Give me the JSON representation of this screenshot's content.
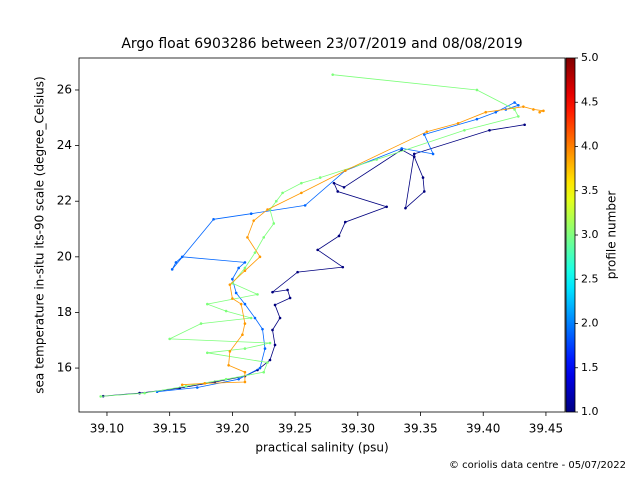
{
  "chart_data": {
    "type": "line",
    "title": "Argo float 6903286 between 23/07/2019 and 08/08/2019",
    "x_label": "practical salinity (psu)",
    "y_label": "sea temperature in-situ its-90 scale (degree_Celsius)",
    "xlim": [
      39.0777,
      39.4652
    ],
    "ylim": [
      14.42,
      27.15
    ],
    "xticks": [
      {
        "value": 39.1,
        "label": "39.10"
      },
      39.15,
      {
        "value": 39.2,
        "label": "39.20"
      },
      39.25,
      {
        "value": 39.3,
        "label": "39.30"
      },
      39.35,
      {
        "value": 39.4,
        "label": "39.40"
      },
      39.45
    ],
    "yticks": [
      16,
      18,
      20,
      22,
      24,
      26
    ],
    "series": [
      {
        "color": "#00007f",
        "x": [
          39.097,
          39.126,
          39.158,
          39.186,
          39.21,
          39.22,
          39.23,
          39.234,
          39.232,
          39.238,
          39.234,
          39.246,
          39.244,
          39.232,
          39.252,
          39.288,
          39.268,
          39.285,
          39.29,
          39.323,
          39.284,
          39.281,
          39.289,
          39.335,
          39.345,
          39.352,
          39.353,
          39.338,
          39.345,
          39.405,
          39.433
        ],
        "values": [
          14.99,
          15.1,
          15.28,
          15.5,
          15.71,
          15.93,
          16.29,
          16.83,
          17.37,
          17.8,
          18.27,
          18.52,
          18.81,
          18.73,
          19.45,
          19.63,
          20.25,
          20.75,
          21.25,
          21.8,
          22.35,
          22.65,
          22.5,
          23.85,
          23.6,
          22.85,
          22.35,
          21.75,
          23.7,
          24.55,
          24.75
        ]
      },
      {
        "color": "#0066ff",
        "x": [
          39.14,
          39.172,
          39.205,
          39.222,
          39.226,
          39.224,
          39.218,
          39.21,
          39.203,
          39.2,
          39.205,
          39.21,
          39.16,
          39.155,
          39.152,
          39.185,
          39.215,
          39.258,
          39.29,
          39.335,
          39.36,
          39.353,
          39.395,
          39.41,
          39.425,
          39.428,
          39.418
        ],
        "values": [
          15.15,
          15.3,
          15.6,
          16.0,
          16.7,
          17.4,
          17.8,
          18.3,
          18.7,
          19.2,
          19.6,
          19.8,
          20.0,
          19.8,
          19.55,
          21.35,
          21.55,
          21.85,
          23.1,
          23.9,
          23.7,
          24.4,
          24.95,
          25.2,
          25.55,
          25.45,
          25.3
        ]
      },
      {
        "color": "#7dff7a",
        "x": [
          39.095,
          39.13,
          39.163,
          39.195,
          39.225,
          39.228,
          39.18,
          39.21,
          39.23,
          39.15,
          39.175,
          39.215,
          39.195,
          39.18,
          39.22,
          39.2,
          39.21,
          39.218,
          39.225,
          39.233,
          39.23,
          39.235,
          39.24,
          39.255,
          39.27,
          39.315,
          39.385,
          39.428,
          39.425,
          39.395,
          39.28
        ],
        "values": [
          14.98,
          15.1,
          15.35,
          15.6,
          15.85,
          16.2,
          16.55,
          16.7,
          16.9,
          17.05,
          17.6,
          17.8,
          18.05,
          18.3,
          18.65,
          19.05,
          19.6,
          20.15,
          20.7,
          21.2,
          21.7,
          22.0,
          22.3,
          22.65,
          22.85,
          23.5,
          24.55,
          25.05,
          25.3,
          26.0,
          26.55
        ]
      },
      {
        "color": "#ff9900",
        "x": [
          39.16,
          39.178,
          39.21,
          39.21,
          39.197,
          39.198,
          39.208,
          39.21,
          39.207,
          39.2,
          39.198,
          39.21,
          39.222,
          39.212,
          39.217,
          39.228,
          39.255,
          39.29,
          39.355,
          39.38,
          39.402,
          39.432,
          39.44,
          39.448,
          39.445
        ],
        "values": [
          15.4,
          15.45,
          15.5,
          15.85,
          16.1,
          16.6,
          17.2,
          17.6,
          18.3,
          18.5,
          19.0,
          19.5,
          20.0,
          20.7,
          21.3,
          21.7,
          22.3,
          23.1,
          24.5,
          24.8,
          25.2,
          25.4,
          25.3,
          25.25,
          25.2
        ]
      }
    ],
    "colorbar": {
      "label": "profile number",
      "colormap": "jet",
      "lim": [
        1,
        5
      ],
      "ticks": [
        {
          "value": 1,
          "label": "1.0"
        },
        1.5,
        {
          "value": 2,
          "label": "2.0"
        },
        2.5,
        {
          "value": 3,
          "label": "3.0"
        },
        3.5,
        {
          "value": 4,
          "label": "4.0"
        },
        4.5,
        {
          "value": 5,
          "label": "5.0"
        }
      ]
    }
  },
  "footer": "© coriolis data centre - 05/07/2022"
}
